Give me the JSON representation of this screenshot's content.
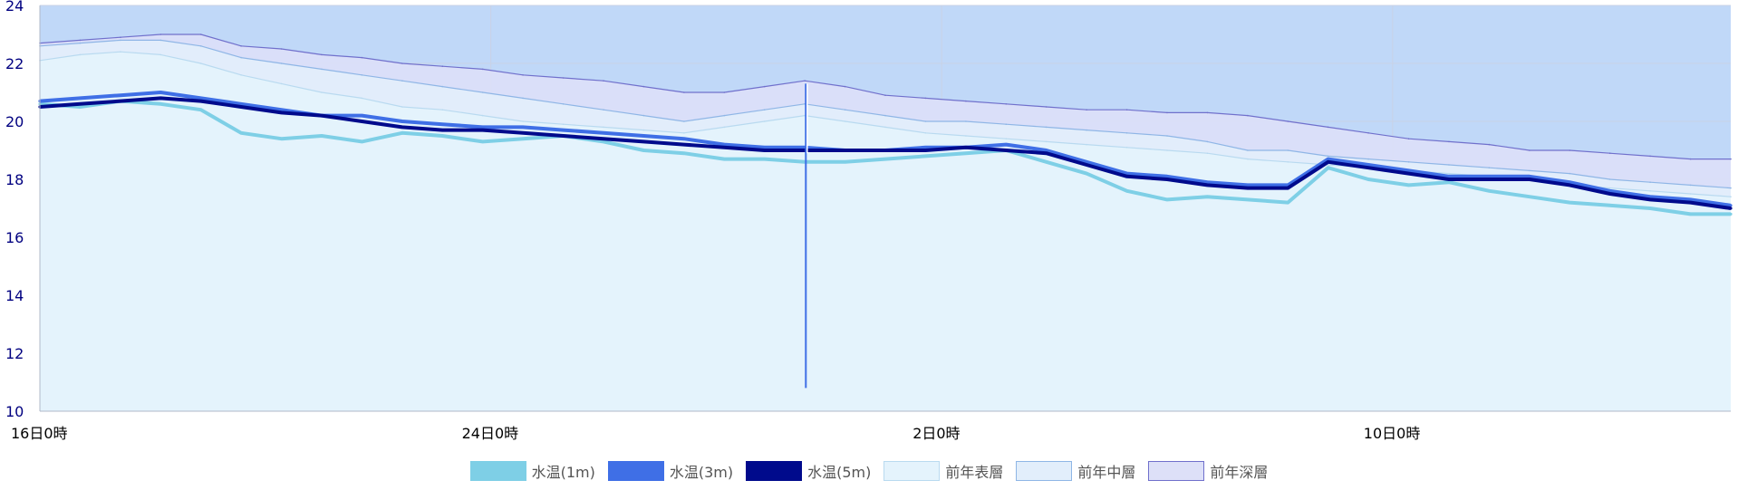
{
  "chart_data": {
    "type": "line",
    "title": "",
    "xlabel": "",
    "ylabel": "",
    "ylim": [
      10,
      24
    ],
    "y_ticks": [
      "24",
      "22",
      "20",
      "18",
      "16",
      "14",
      "12",
      "10"
    ],
    "x_ticks": [
      "16日0時",
      "24日0時",
      "2日0時",
      "10日0時"
    ],
    "grid": true,
    "legend_position": "bottom",
    "series": [
      {
        "name": "前年深層",
        "color": "#7070cc",
        "fill": "#dde0f8",
        "values": [
          22.7,
          22.8,
          22.9,
          23.0,
          23.0,
          22.6,
          22.5,
          22.3,
          22.2,
          22.0,
          21.9,
          21.8,
          21.6,
          21.5,
          21.4,
          21.2,
          21.0,
          21.0,
          21.2,
          21.4,
          21.2,
          20.9,
          20.8,
          20.7,
          20.6,
          20.5,
          20.4,
          20.4,
          20.3,
          20.3,
          20.2,
          20.0,
          19.8,
          19.6,
          19.4,
          19.3,
          19.2,
          19.0,
          19.0,
          18.9,
          18.8,
          18.7,
          18.7
        ]
      },
      {
        "name": "前年中層",
        "color": "#8fb6e6",
        "fill": "#e2eefb",
        "values": [
          22.6,
          22.7,
          22.8,
          22.8,
          22.6,
          22.2,
          22.0,
          21.8,
          21.6,
          21.4,
          21.2,
          21.0,
          20.8,
          20.6,
          20.4,
          20.2,
          20.0,
          20.2,
          20.4,
          20.6,
          20.4,
          20.2,
          20.0,
          20.0,
          19.9,
          19.8,
          19.7,
          19.6,
          19.5,
          19.3,
          19.0,
          19.0,
          18.8,
          18.7,
          18.6,
          18.5,
          18.4,
          18.3,
          18.2,
          18.0,
          17.9,
          17.8,
          17.7
        ]
      },
      {
        "name": "前年表層",
        "color": "#b9daf0",
        "fill": "#e4f3fc",
        "values": [
          22.1,
          22.3,
          22.4,
          22.3,
          22.0,
          21.6,
          21.3,
          21.0,
          20.8,
          20.5,
          20.4,
          20.2,
          20.0,
          19.9,
          19.8,
          19.7,
          19.6,
          19.8,
          20.0,
          20.2,
          20.0,
          19.8,
          19.6,
          19.5,
          19.4,
          19.3,
          19.2,
          19.1,
          19.0,
          18.9,
          18.7,
          18.6,
          18.5,
          18.4,
          18.3,
          18.2,
          18.1,
          18.0,
          17.8,
          17.7,
          17.6,
          17.5,
          17.4
        ]
      },
      {
        "name": "水温(1m)",
        "color": "#7ecfe6",
        "fill": "#7ecfe6",
        "values": [
          20.6,
          20.5,
          20.7,
          20.6,
          20.4,
          19.6,
          19.4,
          19.5,
          19.3,
          19.6,
          19.5,
          19.3,
          19.4,
          19.5,
          19.3,
          19.0,
          18.9,
          18.7,
          18.7,
          18.6,
          18.6,
          18.7,
          18.8,
          18.9,
          19.0,
          18.6,
          18.2,
          17.6,
          17.3,
          17.4,
          17.3,
          17.2,
          18.4,
          18.0,
          17.8,
          17.9,
          17.6,
          17.4,
          17.2,
          17.1,
          17.0,
          16.8,
          16.8
        ]
      },
      {
        "name": "水温(3m)",
        "color": "#3f6fe6",
        "fill": "#3f6fe6",
        "values": [
          20.7,
          20.8,
          20.9,
          21.0,
          20.8,
          20.6,
          20.4,
          20.2,
          20.2,
          20.0,
          19.9,
          19.8,
          19.8,
          19.7,
          19.6,
          19.5,
          19.4,
          19.2,
          19.1,
          19.1,
          19.0,
          19.0,
          19.1,
          19.1,
          19.2,
          19.0,
          18.6,
          18.2,
          18.1,
          17.9,
          17.8,
          17.8,
          18.7,
          18.5,
          18.3,
          18.1,
          18.1,
          18.1,
          17.9,
          17.6,
          17.4,
          17.3,
          17.1
        ]
      },
      {
        "name": "水温(5m)",
        "color": "#000a8c",
        "fill": "#000a8c",
        "values": [
          20.5,
          20.6,
          20.7,
          20.8,
          20.7,
          20.5,
          20.3,
          20.2,
          20.0,
          19.8,
          19.7,
          19.7,
          19.6,
          19.5,
          19.4,
          19.3,
          19.2,
          19.1,
          19.0,
          19.0,
          19.0,
          19.0,
          19.0,
          19.1,
          19.0,
          18.9,
          18.5,
          18.1,
          18.0,
          17.8,
          17.7,
          17.7,
          18.6,
          18.4,
          18.2,
          18.0,
          18.0,
          18.0,
          17.8,
          17.5,
          17.3,
          17.2,
          17.0
        ]
      }
    ],
    "legend_order": [
      "水温(1m)",
      "水温(3m)",
      "水温(5m)",
      "前年表層",
      "前年中層",
      "前年深層"
    ]
  }
}
